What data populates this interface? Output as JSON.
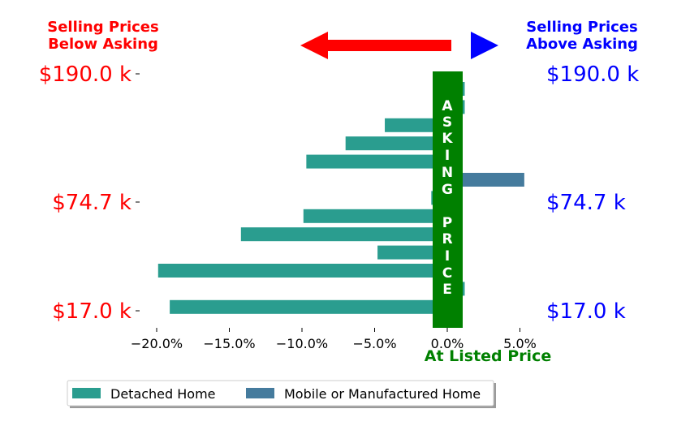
{
  "chart_data": {
    "type": "bar",
    "orientation": "horizontal",
    "xlim": [
      -22,
      6
    ],
    "x_ticks": [
      {
        "value": -20,
        "label": "−20.0%"
      },
      {
        "value": -15,
        "label": "−15.0%"
      },
      {
        "value": -10,
        "label": "−10.0%"
      },
      {
        "value": -5,
        "label": "−5.0%"
      },
      {
        "value": 0,
        "label": "0.0%"
      },
      {
        "value": 5,
        "label": "5.0%"
      }
    ],
    "xlabel": "At Listed Price",
    "left_title": "Selling Prices\nBelow Asking",
    "right_title": "Selling Prices\nAbove Asking",
    "center_label": "ASKING PRICE",
    "left_y_labels": [
      "$190.0 k",
      "$74.7 k",
      "$17.0 k"
    ],
    "right_y_labels": [
      "$190.0 k",
      "$74.7 k",
      "$17.0 k"
    ],
    "series": [
      {
        "name": "Detached Home",
        "color": "#2a9d8f"
      },
      {
        "name": "Mobile or Manufactured Home",
        "color": "#457b9d"
      }
    ],
    "bars": [
      {
        "series": 0,
        "value": 1.2
      },
      {
        "series": 0,
        "value": 1.2
      },
      {
        "series": 0,
        "value": -4.3
      },
      {
        "series": 0,
        "value": -7.0
      },
      {
        "series": 0,
        "value": -9.7
      },
      {
        "series": 1,
        "value": 5.3
      },
      {
        "series": 0,
        "value": -1.1
      },
      {
        "series": 0,
        "value": -9.9
      },
      {
        "series": 0,
        "value": -14.2
      },
      {
        "series": 0,
        "value": -4.8
      },
      {
        "series": 0,
        "value": -19.9
      },
      {
        "series": 0,
        "value": 1.2
      },
      {
        "series": 0,
        "value": -19.1
      }
    ],
    "colors": {
      "below": "#ff0000",
      "above": "#0000ff",
      "asking": "#008000"
    },
    "legend_position": "bottom-left",
    "grid": false
  }
}
